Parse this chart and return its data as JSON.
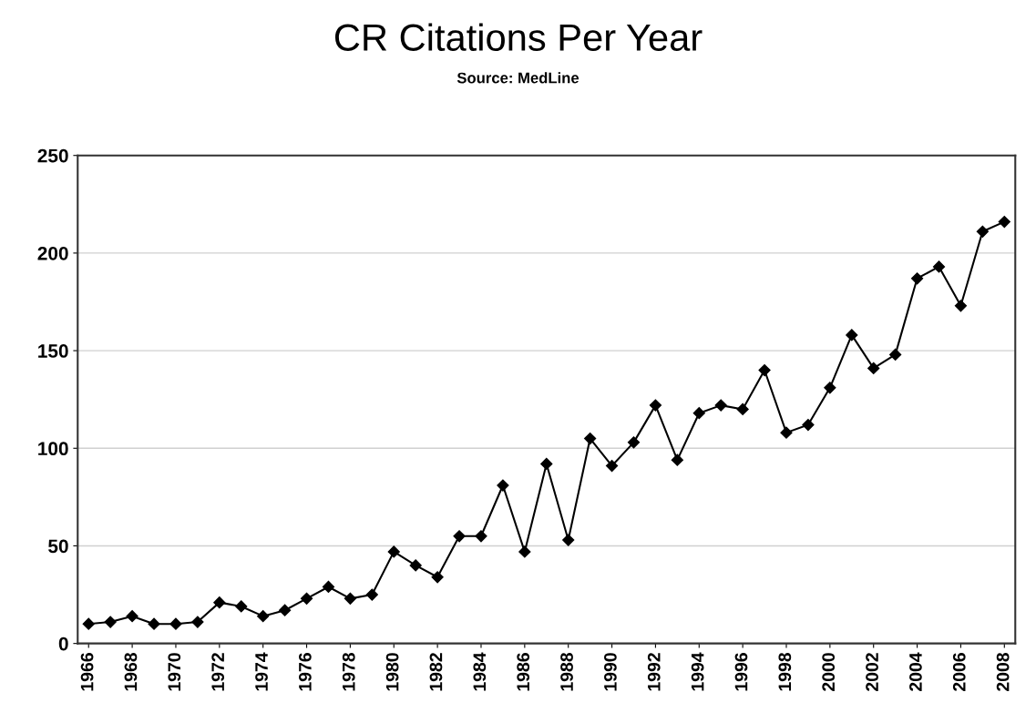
{
  "chart_data": {
    "type": "line",
    "title": "CR Citations Per Year",
    "subtitle": "Source: MedLine",
    "x": [
      1966,
      1967,
      1968,
      1969,
      1970,
      1971,
      1972,
      1973,
      1974,
      1975,
      1976,
      1977,
      1978,
      1979,
      1980,
      1981,
      1982,
      1983,
      1984,
      1985,
      1986,
      1987,
      1988,
      1989,
      1990,
      1991,
      1992,
      1993,
      1994,
      1995,
      1996,
      1997,
      1998,
      1999,
      2000,
      2001,
      2002,
      2003,
      2004,
      2005,
      2006,
      2007,
      2008
    ],
    "series": [
      {
        "color": "#000000",
        "values": [
          10,
          11,
          14,
          10,
          10,
          11,
          21,
          19,
          14,
          17,
          23,
          29,
          23,
          25,
          47,
          40,
          34,
          55,
          55,
          81,
          47,
          92,
          53,
          105,
          91,
          103,
          122,
          94,
          118,
          122,
          120,
          140,
          108,
          112,
          131,
          158,
          141,
          148,
          187,
          193,
          173,
          211,
          216
        ]
      }
    ],
    "xlim": [
      1965.5,
      2008.5
    ],
    "xticks": [
      1966,
      1968,
      1970,
      1972,
      1974,
      1976,
      1978,
      1980,
      1982,
      1984,
      1986,
      1988,
      1990,
      1992,
      1994,
      1996,
      1998,
      2000,
      2002,
      2004,
      2006,
      2008
    ],
    "ylim": [
      0,
      250
    ],
    "yticks": [
      0,
      50,
      100,
      150,
      200,
      250
    ],
    "grid": "y",
    "marker": "diamond",
    "line_style": "solid"
  }
}
